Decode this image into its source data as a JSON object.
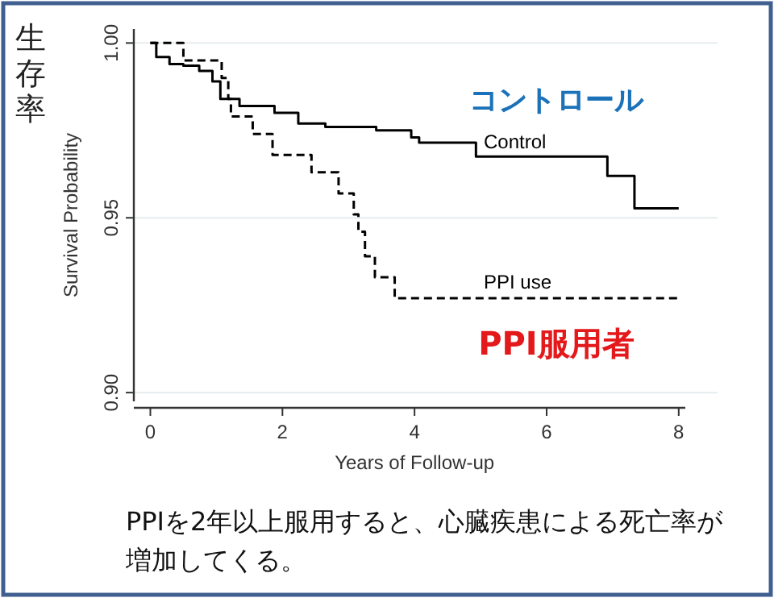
{
  "chart_data": {
    "type": "step",
    "xlabel": "Years of Follow-up",
    "ylabel": "Survival Probability",
    "xlim": [
      -0.25,
      8.1
    ],
    "ylim": [
      0.8975,
      1.004
    ],
    "xticks": [
      0,
      2,
      4,
      6,
      8
    ],
    "yticks": [
      {
        "value": 0.9,
        "label": "0.90"
      },
      {
        "value": 0.95,
        "label": "0.95"
      },
      {
        "value": 1,
        "label": "1.00"
      }
    ],
    "grid": "y",
    "series": [
      {
        "name": "Control",
        "color": "#000000",
        "line_style": "solid",
        "x": [
          0,
          0.09,
          0.29,
          0.5,
          0.74,
          0.94,
          1.06,
          1.35,
          1.88,
          2.24,
          2.65,
          3.42,
          3.95,
          4.07,
          4.93,
          6.92,
          7.33,
          8.0
        ],
        "values": [
          1.0,
          0.996,
          0.994,
          0.9935,
          0.992,
          0.989,
          0.984,
          0.982,
          0.98,
          0.977,
          0.976,
          0.975,
          0.973,
          0.9715,
          0.9675,
          0.962,
          0.9527,
          0.9527
        ]
      },
      {
        "name": "PPI use",
        "color": "#000000",
        "line_style": "dashed",
        "x": [
          0,
          0.5,
          1.08,
          1.18,
          1.22,
          1.55,
          1.85,
          2.44,
          2.85,
          3.08,
          3.15,
          3.25,
          3.4,
          3.7,
          8.0
        ],
        "values": [
          1.0,
          0.995,
          0.99,
          0.984,
          0.979,
          0.974,
          0.968,
          0.963,
          0.957,
          0.951,
          0.946,
          0.939,
          0.933,
          0.927,
          0.927
        ]
      }
    ],
    "annotations": [
      "生存率",
      "コントロール",
      "PPI服用者",
      "PPIを2年以上服用すると、心臓疾患による死亡率が増加してくる。"
    ]
  }
}
